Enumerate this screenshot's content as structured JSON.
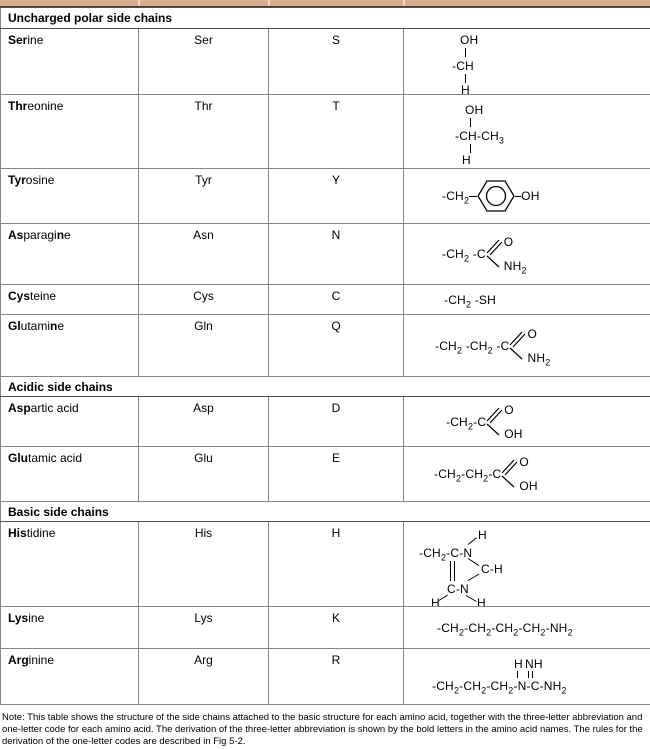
{
  "colors": {
    "top_strip": "#d8ae8e",
    "grid_line": "#878787",
    "section_border": "#4f4f4f",
    "text": "#000000"
  },
  "headers": {
    "uncharged": "Uncharged polar side chains",
    "acidic": "Acidic side chains",
    "basic": "Basic side chains"
  },
  "rows": {
    "serine": {
      "name": [
        {
          "t": "Ser",
          "b": true
        },
        {
          "t": "ine",
          "b": false
        }
      ],
      "abbr": "Ser",
      "code": "S"
    },
    "threonine": {
      "name": [
        {
          "t": "Thr",
          "b": true
        },
        {
          "t": "eonine",
          "b": false
        }
      ],
      "abbr": "Thr",
      "code": "T"
    },
    "tyrosine": {
      "name": [
        {
          "t": "Tyr",
          "b": true
        },
        {
          "t": "osine",
          "b": false
        }
      ],
      "abbr": "Tyr",
      "code": "Y"
    },
    "asparagine": {
      "name": [
        {
          "t": "As",
          "b": true
        },
        {
          "t": "paragi",
          "b": false
        },
        {
          "t": "n",
          "b": true
        },
        {
          "t": "e",
          "b": false
        }
      ],
      "abbr": "Asn",
      "code": "N"
    },
    "cysteine": {
      "name": [
        {
          "t": "Cys",
          "b": true
        },
        {
          "t": "teine",
          "b": false
        }
      ],
      "abbr": "Cys",
      "code": "C"
    },
    "glutamine": {
      "name": [
        {
          "t": "Gl",
          "b": true
        },
        {
          "t": "utami",
          "b": false
        },
        {
          "t": "n",
          "b": true
        },
        {
          "t": "e",
          "b": false
        }
      ],
      "abbr": "Gln",
      "code": "Q"
    },
    "aspartic": {
      "name": [
        {
          "t": "Asp",
          "b": true
        },
        {
          "t": "artic acid",
          "b": false
        }
      ],
      "abbr": "Asp",
      "code": "D"
    },
    "glutamic": {
      "name": [
        {
          "t": "Glu",
          "b": true
        },
        {
          "t": "tamic acid",
          "b": false
        }
      ],
      "abbr": "Glu",
      "code": "E"
    },
    "histidine": {
      "name": [
        {
          "t": "His",
          "b": true
        },
        {
          "t": "tidine",
          "b": false
        }
      ],
      "abbr": "His",
      "code": "H"
    },
    "lysine": {
      "name": [
        {
          "t": "Lys",
          "b": true
        },
        {
          "t": "ine",
          "b": false
        }
      ],
      "abbr": "Lys",
      "code": "K"
    },
    "arginine": {
      "name": [
        {
          "t": "Arg",
          "b": true
        },
        {
          "t": "inine",
          "b": false
        }
      ],
      "abbr": "Arg",
      "code": "R"
    }
  },
  "structures": {
    "serine": {
      "top": "OH",
      "mid": "-CH",
      "bot": "H"
    },
    "threonine": {
      "top": "OH",
      "mid": "-CH-CH_3",
      "bot": "H"
    },
    "tyrosine": {
      "left": "-CH_2",
      "right": "OH"
    },
    "asparagine": {
      "chain": "-CH_2 -C",
      "up": "O",
      "down": "NH_2"
    },
    "cysteine": {
      "chain": "-CH_2 -SH"
    },
    "glutamine": {
      "chain": "-CH_2 -CH_2 -C",
      "up": "O",
      "down": "NH_2"
    },
    "aspartic": {
      "chain": "-CH_2-C",
      "up": "O",
      "down": "OH"
    },
    "glutamic": {
      "chain": "-CH_2-CH_2-C",
      "up": "O",
      "down": "OH"
    },
    "histidine": {
      "chain": "-CH_2-C-N",
      "h_top": "H",
      "ch": "C-H",
      "cn": "C-N",
      "h_left": "H",
      "h_right": "H"
    },
    "lysine": {
      "chain": "-CH_2-CH_2-CH_2-CH_2-NH_2"
    },
    "arginine": {
      "h": "H",
      "nh": "NH",
      "chain": "-CH_2-CH_2-CH_2-N-C-NH_2"
    }
  },
  "note": "Note: This table shows the structure of the side chains attached to the basic structure for each amino acid, together with the three-letter abbreviation and one-letter code for each amino acid. The derivation of the three-letter abbreviation is shown by the bold letters in the amino acid names. The rules for the derivation of the one-letter codes are described in Fig 5-2."
}
